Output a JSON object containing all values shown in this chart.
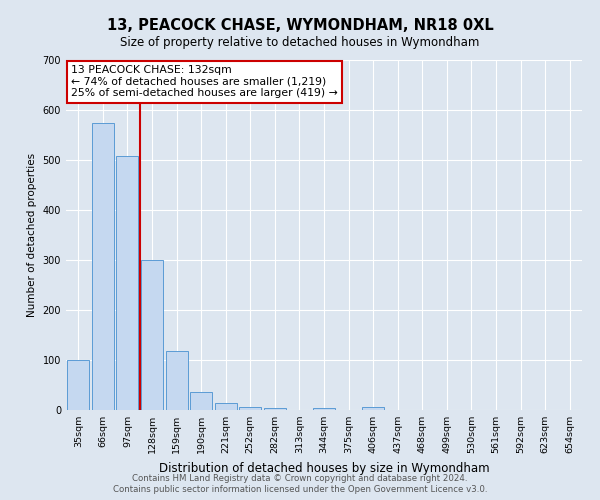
{
  "title": "13, PEACOCK CHASE, WYMONDHAM, NR18 0XL",
  "subtitle": "Size of property relative to detached houses in Wymondham",
  "xlabel": "Distribution of detached houses by size in Wymondham",
  "ylabel": "Number of detached properties",
  "bin_labels": [
    "35sqm",
    "66sqm",
    "97sqm",
    "128sqm",
    "159sqm",
    "190sqm",
    "221sqm",
    "252sqm",
    "282sqm",
    "313sqm",
    "344sqm",
    "375sqm",
    "406sqm",
    "437sqm",
    "468sqm",
    "499sqm",
    "530sqm",
    "561sqm",
    "592sqm",
    "623sqm",
    "654sqm"
  ],
  "bar_values": [
    100,
    575,
    508,
    300,
    118,
    37,
    15,
    7,
    5,
    0,
    5,
    0,
    7,
    0,
    0,
    0,
    0,
    0,
    0,
    0,
    0
  ],
  "bar_color": "#c5d8f0",
  "bar_edge_color": "#5b9bd5",
  "vline_color": "#cc0000",
  "ylim": [
    0,
    700
  ],
  "yticks": [
    0,
    100,
    200,
    300,
    400,
    500,
    600,
    700
  ],
  "annotation_box_text": "13 PEACOCK CHASE: 132sqm\n← 74% of detached houses are smaller (1,219)\n25% of semi-detached houses are larger (419) →",
  "annotation_box_color": "#cc0000",
  "annotation_box_face": "#ffffff",
  "background_color": "#dde6f0",
  "grid_color": "#ffffff",
  "footer_line1": "Contains HM Land Registry data © Crown copyright and database right 2024.",
  "footer_line2": "Contains public sector information licensed under the Open Government Licence v3.0."
}
